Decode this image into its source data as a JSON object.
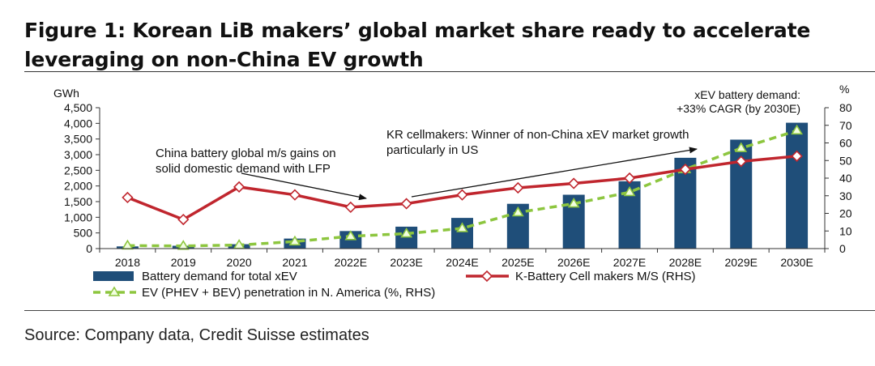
{
  "figure": {
    "title": "Figure 1: Korean LiB makers’ global market share ready to accelerate leveraging on non-China EV growth",
    "source": "Source: Company data, Credit Suisse estimates"
  },
  "chart_data": {
    "type": "bar",
    "categories": [
      "2018",
      "2019",
      "2020",
      "2021",
      "2022E",
      "2023E",
      "2024E",
      "2025E",
      "2026E",
      "2027E",
      "2028E",
      "2029E",
      "2030E"
    ],
    "y_left": {
      "label": "GWh",
      "lim": [
        0,
        4500
      ],
      "ticks": [
        0,
        500,
        1000,
        1500,
        2000,
        2500,
        3000,
        3500,
        4000,
        4500
      ],
      "tick_labels": [
        "0",
        "500",
        "1,000",
        "1,500",
        "2,000",
        "2,500",
        "3,000",
        "3,500",
        "4,000",
        "4,500"
      ]
    },
    "y_right": {
      "label": "%",
      "lim": [
        0,
        80
      ],
      "ticks": [
        0,
        10,
        20,
        30,
        40,
        50,
        60,
        70,
        80
      ],
      "tick_labels": [
        "0",
        "10",
        "20",
        "30",
        "40",
        "50",
        "60",
        "70",
        "80"
      ]
    },
    "series": [
      {
        "name": "Battery demand for total xEV",
        "type": "bar",
        "axis": "left",
        "color": "#1f4e79",
        "values": [
          70,
          90,
          140,
          320,
          560,
          700,
          980,
          1430,
          1720,
          2150,
          2900,
          3480,
          4020
        ]
      },
      {
        "name": "K-Battery Cell makers M/S (RHS)",
        "type": "line",
        "axis": "right",
        "color": "#c0262e",
        "marker": "diamond",
        "values": [
          29,
          16.5,
          35,
          30.5,
          23.5,
          25.5,
          30.5,
          34.5,
          37,
          40,
          45,
          49.5,
          52.5
        ]
      },
      {
        "name": "EV (PHEV + BEV) penetration in N. America (%, RHS)",
        "type": "line",
        "axis": "right",
        "color": "#8dc63f",
        "marker": "triangle",
        "dashed": true,
        "values": [
          1.7,
          1.5,
          2.0,
          4.0,
          7.0,
          8.5,
          11.5,
          20.5,
          25.5,
          32,
          45,
          57,
          67
        ]
      }
    ],
    "annotations": [
      {
        "id": "china",
        "lines": [
          "China battery global m/s gains on",
          "solid domestic demand with LFP"
        ]
      },
      {
        "id": "kr",
        "lines": [
          "KR cellmakers: Winner of non-China xEV market growth",
          "particularly in US"
        ]
      },
      {
        "id": "cagr",
        "lines": [
          "xEV battery demand:",
          "+33% CAGR (by 2030E)"
        ]
      }
    ],
    "legend_position": "bottom",
    "grid": false
  }
}
